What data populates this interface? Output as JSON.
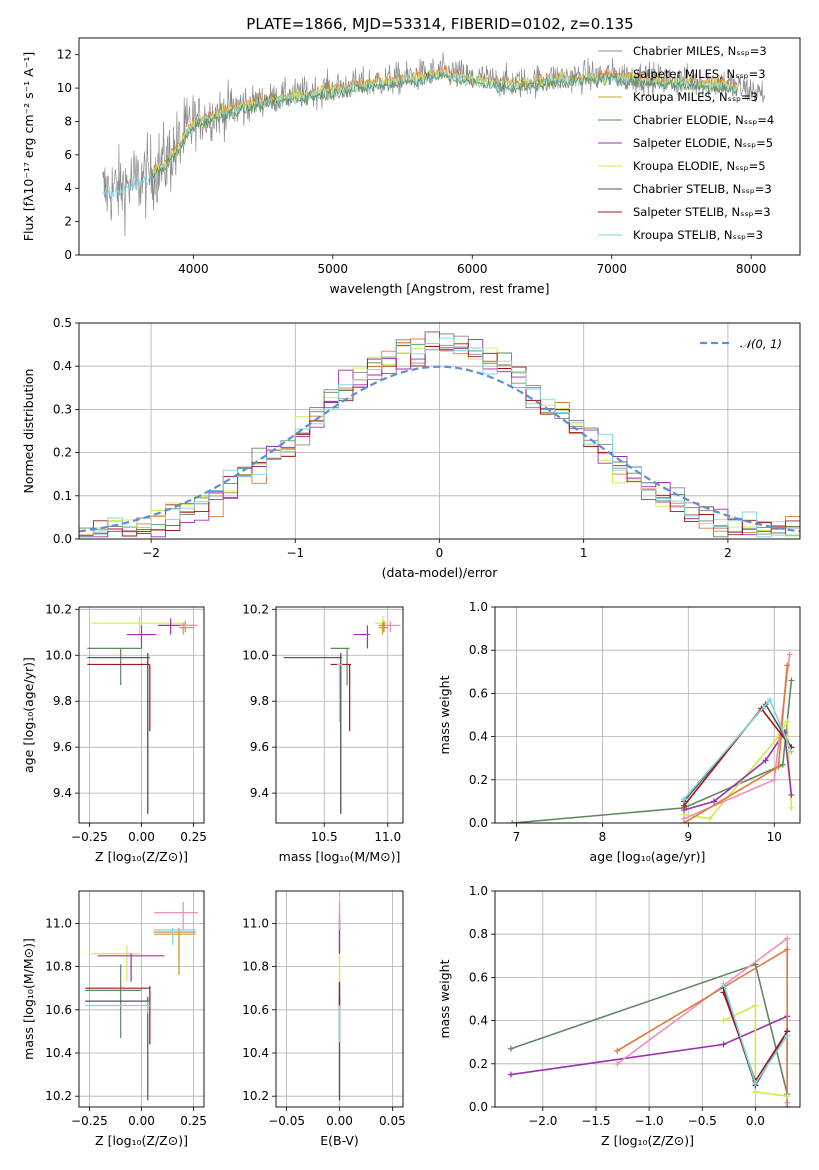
{
  "figure_title": "PLATE=1866, MJD=53314, FIBERID=0102, z=0.135",
  "colors": {
    "Chabrier MILES": "#8c8c8c",
    "Salpeter MILES": "#e07b39",
    "Kroupa MILES": "#c9a227",
    "Chabrier ELODIE": "#5f8a5f",
    "Salpeter ELODIE": "#9b30b0",
    "Kroupa ELODIE": "#d4e84a",
    "Chabrier STELIB": "#555555",
    "Salpeter STELIB": "#a01818",
    "Kroupa STELIB": "#7fd4e0",
    "normal": "#5b8fd6",
    "pink": "#ec8fbc"
  },
  "chart_data": [
    {
      "id": "spectrum",
      "type": "line",
      "title": "PLATE=1866, MJD=53314, FIBERID=0102, z=0.135",
      "xlabel": "wavelength [Angstrom, rest frame]",
      "ylabel": "Flux [fλ10⁻¹⁷ erg cm⁻² s⁻¹ A⁻¹]",
      "xlim": [
        3180,
        8350
      ],
      "ylim": [
        0,
        13
      ],
      "xticks": [
        "4000",
        "5000",
        "6000",
        "7000",
        "8000"
      ],
      "yticks": [
        "0",
        "2",
        "4",
        "6",
        "8",
        "10",
        "12"
      ],
      "grid": false,
      "legend_position": "right",
      "legend": [
        "Chabrier MILES, Nₛₛₚ=3",
        "Salpeter MILES, Nₛₛₚ=3",
        "Kroupa MILES, Nₛₛₚ=3",
        "Chabrier ELODIE, Nₛₛₚ=4",
        "Salpeter ELODIE, Nₛₛₚ=5",
        "Kroupa ELODIE, Nₛₛₚ=5",
        "Chabrier STELIB, Nₛₛₚ=3",
        "Salpeter STELIB, Nₛₛₚ=3",
        "Kroupa STELIB, Nₛₛₚ=3"
      ],
      "series_keys": [
        "Chabrier MILES",
        "Salpeter MILES",
        "Kroupa MILES",
        "Chabrier ELODIE",
        "Salpeter ELODIE",
        "Kroupa ELODIE",
        "Chabrier STELIB",
        "Salpeter STELIB",
        "Kroupa STELIB"
      ],
      "continuum": [
        [
          3350,
          3.8
        ],
        [
          3500,
          4.1
        ],
        [
          3650,
          4.6
        ],
        [
          3800,
          5.6
        ],
        [
          3900,
          6.6
        ],
        [
          4000,
          8.0
        ],
        [
          4200,
          8.6
        ],
        [
          4500,
          9.3
        ],
        [
          5000,
          10.0
        ],
        [
          5500,
          10.6
        ],
        [
          5800,
          11.0
        ],
        [
          6000,
          10.6
        ],
        [
          6300,
          10.3
        ],
        [
          6600,
          10.6
        ],
        [
          7000,
          10.8
        ],
        [
          7400,
          10.5
        ],
        [
          7800,
          10.3
        ],
        [
          8100,
          9.6
        ]
      ]
    },
    {
      "id": "residuals",
      "type": "histogram",
      "xlabel": "(data-model)/error",
      "ylabel": "Normed distribution",
      "xlim": [
        -2.5,
        2.5
      ],
      "ylim": [
        0,
        0.5
      ],
      "xticks": [
        "−2",
        "−1",
        "0",
        "1",
        "2"
      ],
      "yticks": [
        "0.0",
        "0.1",
        "0.2",
        "0.3",
        "0.4",
        "0.5"
      ],
      "grid": true,
      "legend_position": "top-right",
      "legend": [
        "𝒩(0, 1)"
      ],
      "bin_width": 0.1,
      "peak": 0.45
    },
    {
      "id": "age-vs-Z",
      "type": "scatter",
      "xlabel": "Z [log₁₀(Z/Z⊙)]",
      "ylabel": "age  [log₁₀(age/yr)]",
      "xlim": [
        -0.3,
        0.3
      ],
      "ylim": [
        9.27,
        10.21
      ],
      "xticks": [
        "−0.25",
        "0.00",
        "0.25"
      ],
      "yticks": [
        "9.4",
        "9.6",
        "9.8",
        "10.0",
        "10.2"
      ],
      "grid": true,
      "points": [
        {
          "key": "Kroupa ELODIE",
          "x": -0.01,
          "xlo": -0.24,
          "xhi": 0.21,
          "y": 10.14,
          "ylo": 10.09,
          "yhi": 10.17
        },
        {
          "key": "Salpeter ELODIE",
          "x": 0.14,
          "xlo": 0.08,
          "xhi": 0.22,
          "y": 10.13,
          "ylo": 10.09,
          "yhi": 10.16
        },
        {
          "key": "Salpeter MILES",
          "x": 0.21,
          "xlo": 0.18,
          "xhi": 0.26,
          "y": 10.13,
          "ylo": 10.1,
          "yhi": 10.15
        },
        {
          "key": "pink",
          "x": 0.21,
          "xlo": 0.19,
          "xhi": 0.27,
          "y": 10.13,
          "ylo": 10.1,
          "yhi": 10.15
        },
        {
          "key": "Kroupa MILES",
          "x": 0.2,
          "xlo": 0.18,
          "xhi": 0.25,
          "y": 10.12,
          "ylo": 10.09,
          "yhi": 10.14
        },
        {
          "key": "Salpeter ELODIE",
          "x": 0.0,
          "xlo": -0.07,
          "xhi": 0.07,
          "y": 10.09,
          "ylo": 10.03,
          "yhi": 10.13
        },
        {
          "key": "Chabrier ELODIE",
          "x": -0.1,
          "xlo": -0.26,
          "xhi": 0.0,
          "y": 10.03,
          "ylo": 9.87,
          "yhi": 10.03
        },
        {
          "key": "Chabrier MILES",
          "x": 0.03,
          "xlo": -0.26,
          "xhi": 0.04,
          "y": 9.99,
          "ylo": 9.31,
          "yhi": 10.01
        },
        {
          "key": "Chabrier STELIB",
          "x": 0.03,
          "xlo": -0.26,
          "xhi": 0.04,
          "y": 9.99,
          "ylo": 9.31,
          "yhi": 10.01
        },
        {
          "key": "Salpeter STELIB",
          "x": 0.04,
          "xlo": -0.26,
          "xhi": 0.04,
          "y": 9.96,
          "ylo": 9.67,
          "yhi": 9.96
        }
      ]
    },
    {
      "id": "age-vs-mass",
      "type": "scatter",
      "xlabel": "mass [log₁₀(M/M⊙)]",
      "ylabel": "",
      "xlim": [
        10.12,
        11.12
      ],
      "ylim": [
        9.27,
        10.21
      ],
      "xticks": [
        "10.5",
        "11.0"
      ],
      "yticks": [
        "9.4",
        "9.6",
        "9.8",
        "10.0",
        "10.2"
      ],
      "grid": true,
      "points": [
        {
          "key": "Kroupa ELODIE",
          "x": 10.96,
          "xlo": 10.9,
          "xhi": 11.0,
          "y": 10.14,
          "ylo": 10.1,
          "yhi": 10.17
        },
        {
          "key": "Salpeter MILES",
          "x": 10.97,
          "xlo": 10.93,
          "xhi": 11.02,
          "y": 10.13,
          "ylo": 10.1,
          "yhi": 10.15
        },
        {
          "key": "pink",
          "x": 11.02,
          "xlo": 10.98,
          "xhi": 11.1,
          "y": 10.13,
          "ylo": 10.1,
          "yhi": 10.15
        },
        {
          "key": "Kroupa MILES",
          "x": 10.96,
          "xlo": 10.93,
          "xhi": 11.0,
          "y": 10.12,
          "ylo": 10.09,
          "yhi": 10.14
        },
        {
          "key": "Salpeter ELODIE",
          "x": 10.84,
          "xlo": 10.73,
          "xhi": 10.86,
          "y": 10.09,
          "ylo": 10.03,
          "yhi": 10.13
        },
        {
          "key": "Chabrier ELODIE",
          "x": 10.68,
          "xlo": 10.55,
          "xhi": 10.7,
          "y": 10.03,
          "ylo": 9.87,
          "yhi": 10.03
        },
        {
          "key": "Chabrier MILES",
          "x": 10.63,
          "xlo": 10.18,
          "xhi": 10.64,
          "y": 9.99,
          "ylo": 9.31,
          "yhi": 10.01
        },
        {
          "key": "Chabrier STELIB",
          "x": 10.63,
          "xlo": 10.18,
          "xhi": 10.64,
          "y": 9.99,
          "ylo": 9.31,
          "yhi": 10.01
        },
        {
          "key": "Salpeter STELIB",
          "x": 10.7,
          "xlo": 10.55,
          "xhi": 10.71,
          "y": 9.96,
          "ylo": 9.67,
          "yhi": 9.96
        },
        {
          "key": "Kroupa STELIB",
          "x": 10.62,
          "xlo": 10.6,
          "xhi": 10.64,
          "y": 9.96,
          "ylo": 9.71,
          "yhi": 9.96
        }
      ]
    },
    {
      "id": "weight-vs-age",
      "type": "line",
      "xlabel": "age  [log₁₀(age/yr)]",
      "ylabel": "mass weight",
      "xlim": [
        6.75,
        10.3
      ],
      "ylim": [
        0,
        1.0
      ],
      "xticks": [
        "7",
        "8",
        "9",
        "10"
      ],
      "yticks": [
        "0.0",
        "0.2",
        "0.4",
        "0.6",
        "0.8",
        "1.0"
      ],
      "grid": true,
      "series": [
        {
          "key": "Chabrier ELODIE",
          "points": [
            [
              6.95,
              0.0
            ],
            [
              8.95,
              0.07
            ],
            [
              10.1,
              0.27
            ],
            [
              10.2,
              0.66
            ]
          ]
        },
        {
          "key": "Kroupa ELODIE",
          "points": [
            [
              8.95,
              0.04
            ],
            [
              9.25,
              0.02
            ],
            [
              10.05,
              0.4
            ],
            [
              10.15,
              0.47
            ],
            [
              10.2,
              0.07
            ]
          ]
        },
        {
          "key": "Salpeter ELODIE",
          "points": [
            [
              8.95,
              0.06
            ],
            [
              9.3,
              0.1
            ],
            [
              9.9,
              0.29
            ],
            [
              10.12,
              0.42
            ],
            [
              10.2,
              0.13
            ]
          ]
        },
        {
          "key": "pink",
          "points": [
            [
              8.95,
              0.02
            ],
            [
              10.0,
              0.2
            ],
            [
              10.18,
              0.78
            ]
          ]
        },
        {
          "key": "Salpeter MILES",
          "points": [
            [
              8.95,
              0.0
            ],
            [
              10.05,
              0.26
            ],
            [
              10.15,
              0.73
            ]
          ]
        },
        {
          "key": "Chabrier STELIB",
          "points": [
            [
              8.95,
              0.1
            ],
            [
              9.9,
              0.55
            ],
            [
              10.2,
              0.35
            ]
          ]
        },
        {
          "key": "Salpeter STELIB",
          "points": [
            [
              8.95,
              0.08
            ],
            [
              9.85,
              0.53
            ],
            [
              10.2,
              0.35
            ]
          ]
        },
        {
          "key": "Kroupa STELIB",
          "points": [
            [
              8.95,
              0.11
            ],
            [
              9.95,
              0.57
            ],
            [
              10.2,
              0.33
            ]
          ]
        }
      ]
    },
    {
      "id": "mass-vs-Z",
      "type": "scatter",
      "xlabel": "Z [log₁₀(Z/Z⊙)]",
      "ylabel": "mass [log₁₀(M/M⊙)]",
      "xlim": [
        -0.3,
        0.3
      ],
      "ylim": [
        10.15,
        11.15
      ],
      "xticks": [
        "−0.25",
        "0.00",
        "0.25"
      ],
      "yticks": [
        "10.2",
        "10.4",
        "10.6",
        "10.8",
        "11.0"
      ],
      "grid": true,
      "points": [
        {
          "key": "pink",
          "x": 0.2,
          "xlo": 0.06,
          "xhi": 0.27,
          "y": 11.05,
          "ylo": 10.97,
          "yhi": 11.1
        },
        {
          "key": "Salpeter MILES",
          "x": 0.18,
          "xlo": 0.06,
          "xhi": 0.26,
          "y": 10.96,
          "ylo": 10.77,
          "yhi": 10.98
        },
        {
          "key": "Kroupa MILES",
          "x": 0.18,
          "xlo": 0.06,
          "xhi": 0.26,
          "y": 10.95,
          "ylo": 10.76,
          "yhi": 10.97
        },
        {
          "key": "Kroupa STELIB",
          "x": 0.15,
          "xlo": 0.06,
          "xhi": 0.26,
          "y": 10.97,
          "ylo": 10.9,
          "yhi": 10.98
        },
        {
          "key": "Kroupa ELODIE",
          "x": -0.07,
          "xlo": -0.24,
          "xhi": 0.0,
          "y": 10.86,
          "ylo": 10.73,
          "yhi": 10.9
        },
        {
          "key": "Salpeter ELODIE",
          "x": -0.05,
          "xlo": -0.21,
          "xhi": 0.11,
          "y": 10.85,
          "ylo": 10.73,
          "yhi": 10.86
        },
        {
          "key": "Chabrier ELODIE",
          "x": -0.1,
          "xlo": -0.27,
          "xhi": 0.0,
          "y": 10.69,
          "ylo": 10.47,
          "yhi": 10.81
        },
        {
          "key": "Salpeter STELIB",
          "x": 0.04,
          "xlo": -0.27,
          "xhi": 0.04,
          "y": 10.7,
          "ylo": 10.44,
          "yhi": 10.71
        },
        {
          "key": "Chabrier STELIB",
          "x": 0.03,
          "xlo": -0.27,
          "xhi": 0.04,
          "y": 10.64,
          "ylo": 10.18,
          "yhi": 10.66
        },
        {
          "key": "Kroupa STELIB",
          "x": 0.03,
          "xlo": -0.27,
          "xhi": 0.04,
          "y": 10.62,
          "ylo": 10.58,
          "yhi": 10.64
        }
      ]
    },
    {
      "id": "mass-vs-ebv",
      "type": "scatter",
      "xlabel": "E(B-V)",
      "ylabel": "",
      "xlim": [
        -0.06,
        0.06
      ],
      "ylim": [
        10.15,
        11.15
      ],
      "xticks": [
        "−0.05",
        "0.00",
        "0.05"
      ],
      "yticks": [
        "10.2",
        "10.4",
        "10.6",
        "10.8",
        "11.0"
      ],
      "grid": true,
      "segments": [
        {
          "key": "Chabrier STELIB",
          "x": 0.0,
          "ylo": 10.18,
          "yhi": 10.66
        },
        {
          "key": "Kroupa STELIB",
          "x": 0.0,
          "ylo": 10.45,
          "yhi": 10.7
        },
        {
          "key": "Salpeter STELIB",
          "x": 0.0,
          "ylo": 10.62,
          "yhi": 10.73
        },
        {
          "key": "Kroupa ELODIE",
          "x": 0.0,
          "ylo": 10.73,
          "yhi": 10.9
        },
        {
          "key": "Salpeter ELODIE",
          "x": 0.0,
          "ylo": 10.86,
          "yhi": 11.04
        },
        {
          "key": "pink",
          "x": 0.0,
          "ylo": 10.97,
          "yhi": 11.1
        }
      ]
    },
    {
      "id": "weight-vs-Z",
      "type": "line",
      "xlabel": "Z [log₁₀(Z/Z⊙)]",
      "ylabel": "mass weight",
      "xlim": [
        -2.45,
        0.42
      ],
      "ylim": [
        0,
        1.0
      ],
      "xticks": [
        "−2.0",
        "−1.5",
        "−1.0",
        "−0.5",
        "0.0"
      ],
      "yticks": [
        "0.0",
        "0.2",
        "0.4",
        "0.6",
        "0.8",
        "1.0"
      ],
      "grid": true,
      "series": [
        {
          "key": "Chabrier ELODIE",
          "points": [
            [
              -2.3,
              0.27
            ],
            [
              0.0,
              0.66
            ],
            [
              0.3,
              0.06
            ]
          ]
        },
        {
          "key": "Salpeter ELODIE",
          "points": [
            [
              -2.3,
              0.15
            ],
            [
              -0.3,
              0.29
            ],
            [
              0.3,
              0.42
            ],
            [
              0.3,
              0.0
            ]
          ]
        },
        {
          "key": "pink",
          "points": [
            [
              -1.3,
              0.2
            ],
            [
              0.3,
              0.78
            ],
            [
              0.3,
              0.02
            ]
          ]
        },
        {
          "key": "Salpeter MILES",
          "points": [
            [
              -1.3,
              0.26
            ],
            [
              0.3,
              0.73
            ],
            [
              0.3,
              0.0
            ]
          ]
        },
        {
          "key": "Kroupa ELODIE",
          "points": [
            [
              -0.3,
              0.4
            ],
            [
              0.0,
              0.47
            ],
            [
              0.0,
              0.07
            ],
            [
              0.3,
              0.05
            ]
          ]
        },
        {
          "key": "Chabrier STELIB",
          "points": [
            [
              -0.3,
              0.55
            ],
            [
              0.0,
              0.1
            ],
            [
              0.3,
              0.35
            ]
          ]
        },
        {
          "key": "Salpeter STELIB",
          "points": [
            [
              -0.3,
              0.53
            ],
            [
              0.0,
              0.12
            ],
            [
              0.3,
              0.35
            ]
          ]
        },
        {
          "key": "Kroupa STELIB",
          "points": [
            [
              -0.3,
              0.57
            ],
            [
              0.0,
              0.11
            ],
            [
              0.3,
              0.33
            ]
          ]
        }
      ]
    }
  ]
}
